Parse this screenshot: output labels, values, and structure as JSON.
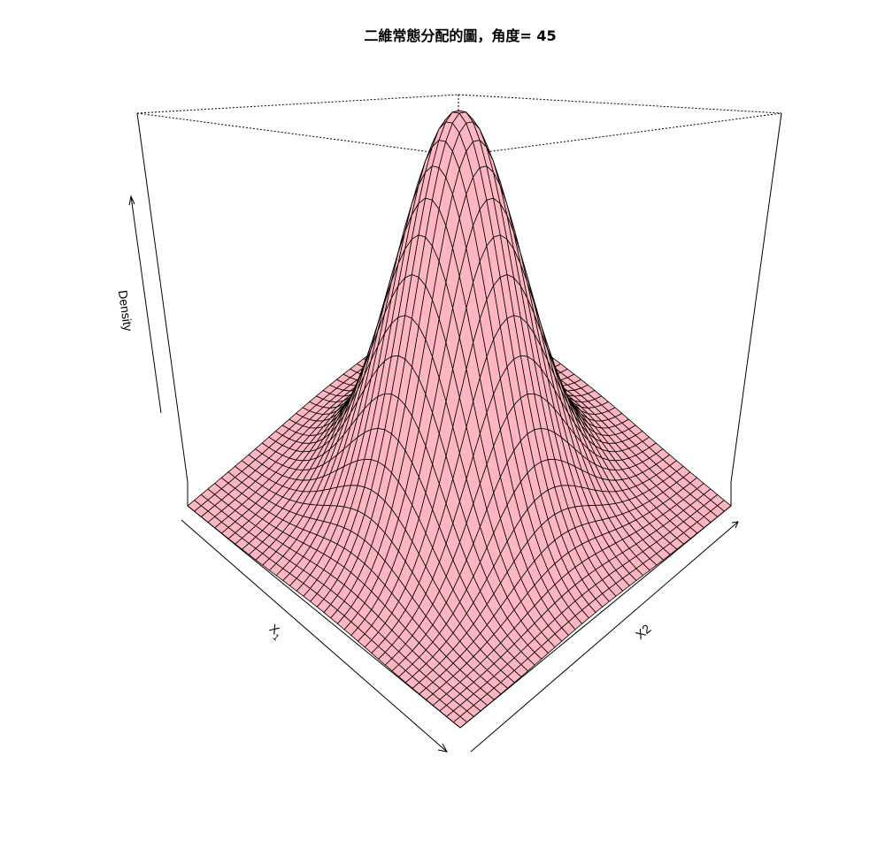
{
  "chart_data": {
    "type": "surface",
    "title": "二維常態分配的圖，角度= 45",
    "xlabel": "X",
    "xlabel_subscript": "1",
    "ylabel": "X2",
    "zlabel": "Density",
    "surface": "bivariate standard normal density",
    "x_range": [
      -3,
      3
    ],
    "y_range": [
      -3,
      3
    ],
    "grid_lines": 41,
    "view_theta_deg": 45,
    "view_phi_deg": 30,
    "surface_color": "#FFB6C1",
    "line_color": "#000000",
    "ticks": false,
    "box": true
  }
}
